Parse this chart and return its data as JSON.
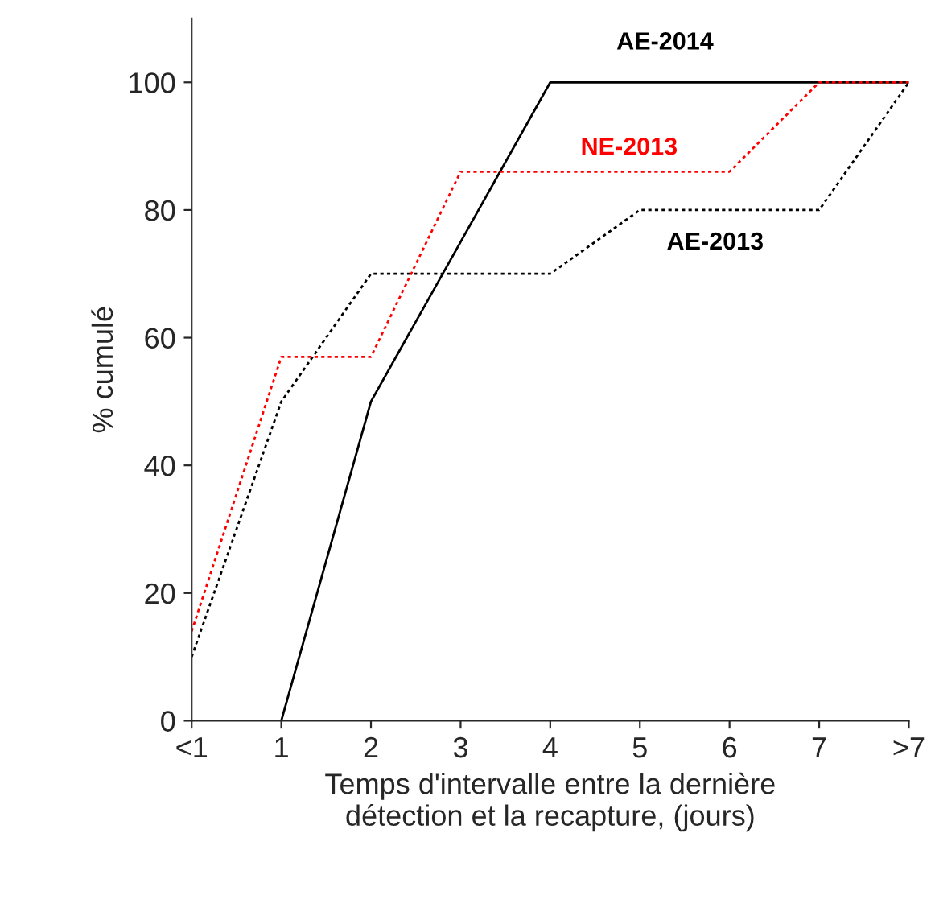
{
  "chart_data": {
    "type": "line",
    "xlabel": "Temps d'intervalle entre la dernière\ndétection et la recapture, (jours)",
    "ylabel": "% cumulé",
    "categories": [
      "<1",
      "1",
      "2",
      "3",
      "4",
      "5",
      "6",
      "7",
      ">7"
    ],
    "series": [
      {
        "name": "AE-2014",
        "color": "#000000",
        "line_style": "solid",
        "values": [
          0,
          0,
          50,
          75,
          100,
          100,
          100,
          100,
          100
        ]
      },
      {
        "name": "NE-2013",
        "color": "#ff0000",
        "line_style": "dotted",
        "values": [
          14,
          57,
          57,
          86,
          86,
          86,
          86,
          100,
          100
        ]
      },
      {
        "name": "AE-2013",
        "color": "#000000",
        "line_style": "dotted",
        "values": [
          10,
          50,
          70,
          70,
          70,
          80,
          80,
          80,
          100
        ]
      }
    ],
    "ylim": [
      0,
      110
    ],
    "yticks": [
      0,
      20,
      40,
      60,
      80,
      100
    ],
    "grid": false,
    "legend": false,
    "marker": "none"
  }
}
